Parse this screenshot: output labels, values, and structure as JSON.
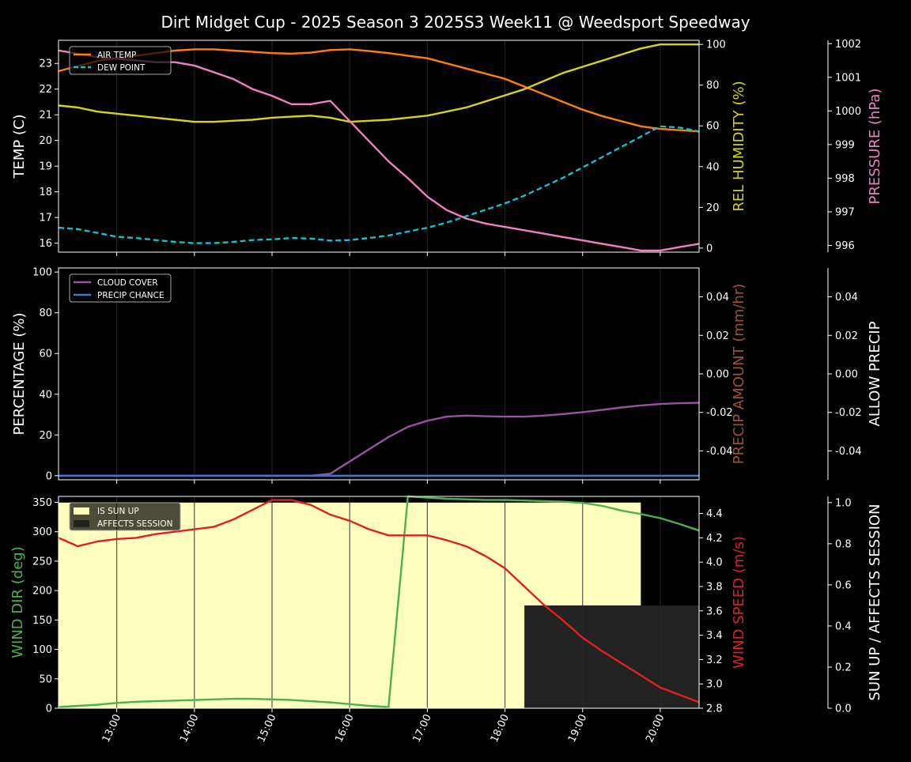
{
  "title": "Dirt Midget Cup - 2025 Season 3 2025S3 Week11 @ Weedsport Speedway",
  "colors": {
    "background": "#000000",
    "foreground": "#ffffff",
    "air_temp": "#ff7f0e",
    "dew_point": "#17becf",
    "humidity": "#d4d41c",
    "pressure": "#f080c0",
    "cloud_cover": "#9b4fa6",
    "precip_chance": "#3a7ac8",
    "precip_amount_label": "#a0522d",
    "wind_dir": "#4caf50",
    "wind_speed": "#e02020",
    "sun_up": "#ffffc0",
    "affects_session": "#222222"
  },
  "x_ticks": [
    "13:00",
    "14:00",
    "15:00",
    "16:00",
    "17:00",
    "18:00",
    "19:00",
    "20:00"
  ],
  "chart_data": [
    {
      "type": "line",
      "panel": "weather",
      "x": [
        "12:15",
        "12:30",
        "12:45",
        "13:00",
        "13:15",
        "13:30",
        "13:45",
        "14:00",
        "14:15",
        "14:30",
        "14:45",
        "15:00",
        "15:15",
        "15:30",
        "15:45",
        "16:00",
        "16:15",
        "16:30",
        "16:45",
        "17:00",
        "17:15",
        "17:30",
        "17:45",
        "18:00",
        "18:15",
        "18:30",
        "18:45",
        "19:00",
        "19:15",
        "19:30",
        "19:45",
        "20:00",
        "20:15",
        "20:30"
      ],
      "ylabel_left": "TEMP (C)",
      "ylabel_right": "REL HUMIDITY (%)",
      "ylabel_right2": "PRESSURE (hPa)",
      "yticks_left": [
        "16",
        "17",
        "18",
        "19",
        "20",
        "21",
        "22",
        "23"
      ],
      "yticks_right": [
        "0",
        "20",
        "40",
        "60",
        "80",
        "100"
      ],
      "yticks_right2": [
        "996",
        "997",
        "998",
        "999",
        "1000",
        "1001",
        "1002"
      ],
      "ylim_left": [
        15.65,
        23.9
      ],
      "ylim_right": [
        -2,
        102
      ],
      "ylim_right2": [
        995.8,
        1002.1
      ],
      "legend": {
        "position": "top-left",
        "entries": [
          "AIR TEMP",
          "DEW POINT"
        ]
      },
      "series": [
        {
          "name": "AIR TEMP",
          "axis": "left",
          "style": "solid",
          "values": [
            22.7,
            22.9,
            23.1,
            23.2,
            23.3,
            23.4,
            23.5,
            23.55,
            23.55,
            23.5,
            23.45,
            23.4,
            23.38,
            23.42,
            23.52,
            23.55,
            23.48,
            23.4,
            23.3,
            23.2,
            23.0,
            22.8,
            22.6,
            22.4,
            22.1,
            21.8,
            21.5,
            21.2,
            20.95,
            20.75,
            20.55,
            20.45,
            20.4,
            20.35
          ]
        },
        {
          "name": "DEW POINT",
          "axis": "left",
          "style": "dashed",
          "values": [
            16.6,
            16.55,
            16.4,
            16.25,
            16.2,
            16.12,
            16.05,
            16.0,
            16.0,
            16.05,
            16.12,
            16.15,
            16.2,
            16.18,
            16.1,
            16.12,
            16.2,
            16.3,
            16.45,
            16.6,
            16.8,
            17.05,
            17.3,
            17.55,
            17.85,
            18.2,
            18.55,
            18.95,
            19.35,
            19.75,
            20.15,
            20.55,
            20.5,
            20.35
          ]
        },
        {
          "axis": "right",
          "style": "solid",
          "values": [
            70,
            69,
            67,
            66,
            65,
            64,
            63,
            62,
            62,
            62.5,
            63,
            64,
            64.5,
            65,
            64,
            62,
            62.5,
            63,
            64,
            65,
            67,
            69,
            72,
            75,
            78,
            82,
            86,
            89,
            92,
            95,
            98,
            100,
            100,
            100
          ]
        },
        {
          "axis": "right2",
          "style": "solid",
          "values": [
            1001.8,
            1001.7,
            1001.6,
            1001.55,
            1001.5,
            1001.45,
            1001.45,
            1001.35,
            1001.15,
            1000.95,
            1000.65,
            1000.45,
            1000.2,
            1000.2,
            1000.3,
            999.7,
            999.1,
            998.5,
            998.0,
            997.45,
            997.05,
            996.8,
            996.65,
            996.55,
            996.45,
            996.35,
            996.25,
            996.15,
            996.05,
            995.95,
            995.85,
            995.85,
            995.95,
            996.05
          ]
        }
      ]
    },
    {
      "type": "line",
      "panel": "precip",
      "x": [
        "12:15",
        "12:30",
        "12:45",
        "13:00",
        "13:15",
        "13:30",
        "13:45",
        "14:00",
        "14:15",
        "14:30",
        "14:45",
        "15:00",
        "15:15",
        "15:30",
        "15:45",
        "16:00",
        "16:15",
        "16:30",
        "16:45",
        "17:00",
        "17:15",
        "17:30",
        "17:45",
        "18:00",
        "18:15",
        "18:30",
        "18:45",
        "19:00",
        "19:15",
        "19:30",
        "19:45",
        "20:00",
        "20:15",
        "20:30"
      ],
      "ylabel_left": "PERCENTAGE (%)",
      "ylabel_right": "PRECIP AMOUNT (mm/hr)",
      "ylabel_right2": "ALLOW PRECIP",
      "yticks_left": [
        "0",
        "20",
        "40",
        "60",
        "80",
        "100"
      ],
      "yticks_right": [
        "-0.04",
        "-0.02",
        "0.00",
        "0.02",
        "0.04"
      ],
      "yticks_right2": [
        "-0.04",
        "-0.02",
        "0.00",
        "0.02",
        "0.04"
      ],
      "ylim_left": [
        -2,
        102
      ],
      "ylim_right": [
        -0.055,
        0.055
      ],
      "ylim_right2": [
        -0.055,
        0.055
      ],
      "legend": {
        "position": "top-left",
        "entries": [
          "CLOUD COVER",
          "PRECIP CHANCE"
        ]
      },
      "series": [
        {
          "name": "CLOUD COVER",
          "axis": "left",
          "style": "solid",
          "values": [
            0,
            0,
            0,
            0,
            0,
            0,
            0,
            0,
            0,
            0,
            0,
            0,
            0,
            0,
            1,
            7,
            13,
            19,
            24,
            27,
            29,
            29.5,
            29.2,
            29,
            29,
            29.5,
            30.3,
            31.2,
            32.3,
            33.5,
            34.5,
            35.2,
            35.6,
            35.8
          ]
        },
        {
          "name": "PRECIP CHANCE",
          "axis": "left",
          "style": "solid",
          "values": [
            0,
            0,
            0,
            0,
            0,
            0,
            0,
            0,
            0,
            0,
            0,
            0,
            0,
            0,
            0,
            0,
            0,
            0,
            0,
            0,
            0,
            0,
            0,
            0,
            0,
            0,
            0,
            0,
            0,
            0,
            0,
            0,
            0,
            0
          ]
        }
      ]
    },
    {
      "type": "line",
      "panel": "wind",
      "x": [
        "12:15",
        "12:30",
        "12:45",
        "13:00",
        "13:15",
        "13:30",
        "13:45",
        "14:00",
        "14:15",
        "14:30",
        "14:45",
        "15:00",
        "15:15",
        "15:30",
        "15:45",
        "16:00",
        "16:15",
        "16:30",
        "16:45",
        "17:00",
        "17:15",
        "17:30",
        "17:45",
        "18:00",
        "18:15",
        "18:30",
        "18:45",
        "19:00",
        "19:15",
        "19:30",
        "19:45",
        "20:00",
        "20:15",
        "20:30"
      ],
      "ylabel_left": "WIND DIR (deg)",
      "ylabel_right": "WIND SPEED (m/s)",
      "ylabel_right2": "SUN UP / AFFECTS SESSION",
      "yticks_left": [
        "0",
        "50",
        "100",
        "150",
        "200",
        "250",
        "300",
        "350"
      ],
      "yticks_right": [
        "2.8",
        "3.0",
        "3.2",
        "3.4",
        "3.6",
        "3.8",
        "4.0",
        "4.2",
        "4.4"
      ],
      "yticks_right2": [
        "0.0",
        "0.2",
        "0.4",
        "0.6",
        "0.8",
        "1.0"
      ],
      "ylim_left": [
        0,
        360
      ],
      "ylim_right": [
        2.8,
        4.54
      ],
      "ylim_right2": [
        0,
        1.03
      ],
      "legend": {
        "position": "top-left",
        "entries": [
          "IS SUN UP",
          "AFFECTS SESSION"
        ]
      },
      "regions": [
        {
          "name": "IS SUN UP",
          "from": "12:15",
          "to": "19:45",
          "value": 1.0
        },
        {
          "name": "AFFECTS SESSION",
          "from": "18:15",
          "to": "20:30",
          "value": 0.5
        }
      ],
      "series": [
        {
          "axis": "left",
          "style": "solid",
          "values": [
            2,
            4,
            6,
            9,
            11,
            12,
            13,
            14,
            15,
            16,
            16,
            15,
            14,
            12,
            10,
            7,
            4,
            2,
            360,
            358,
            356,
            355,
            354,
            354,
            353,
            352,
            351,
            349,
            344,
            336,
            330,
            323,
            313,
            302
          ]
        },
        {
          "axis": "right",
          "style": "solid",
          "values": [
            4.2,
            4.13,
            4.17,
            4.19,
            4.2,
            4.23,
            4.25,
            4.27,
            4.29,
            4.35,
            4.43,
            4.51,
            4.51,
            4.47,
            4.39,
            4.34,
            4.27,
            4.22,
            4.22,
            4.22,
            4.18,
            4.13,
            4.05,
            3.95,
            3.8,
            3.65,
            3.52,
            3.38,
            3.27,
            3.17,
            3.07,
            2.97,
            2.91,
            2.85
          ]
        }
      ]
    }
  ]
}
